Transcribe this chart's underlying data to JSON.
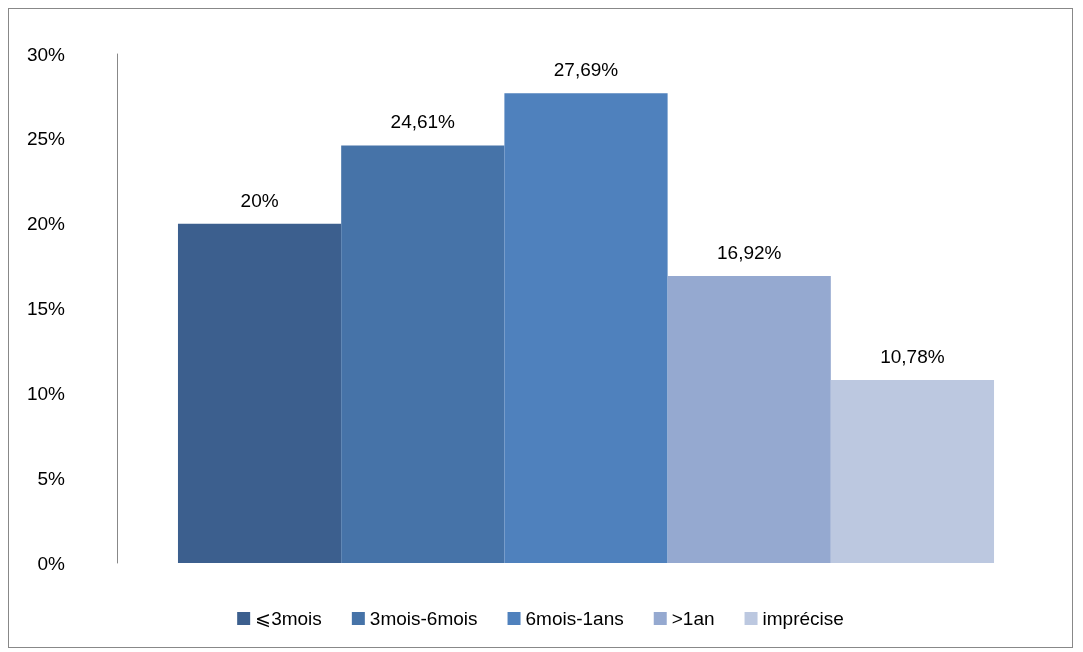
{
  "chart_data": {
    "type": "bar",
    "categories": [
      null
    ],
    "series": [
      {
        "name": "⩽3mois",
        "color": "#3c5f8e",
        "values": [
          20
        ],
        "value_labels": [
          "20%"
        ]
      },
      {
        "name": "3mois-6mois",
        "color": "#4673a8",
        "values": [
          24.61
        ],
        "value_labels": [
          "24,61%"
        ]
      },
      {
        "name": "6mois-1ans",
        "color": "#4f81bd",
        "values": [
          27.69
        ],
        "value_labels": [
          "27,69%"
        ]
      },
      {
        "name": ">1an",
        "color": "#95a9d0",
        "values": [
          16.92
        ],
        "value_labels": [
          "16,92%"
        ]
      },
      {
        "name": "imprécise",
        "color": "#bcc8e0",
        "values": [
          10.78
        ],
        "value_labels": [
          "10,78%"
        ]
      }
    ],
    "ylim": [
      0,
      30
    ],
    "yticks": [
      {
        "value": 0,
        "label": "0%"
      },
      {
        "value": 5,
        "label": "5%"
      },
      {
        "value": 10,
        "label": "10%"
      },
      {
        "value": 15,
        "label": "15%"
      },
      {
        "value": 20,
        "label": "20%"
      },
      {
        "value": 25,
        "label": "25%"
      },
      {
        "value": 30,
        "label": "30%"
      }
    ],
    "grid": false,
    "legend": "bottom"
  }
}
